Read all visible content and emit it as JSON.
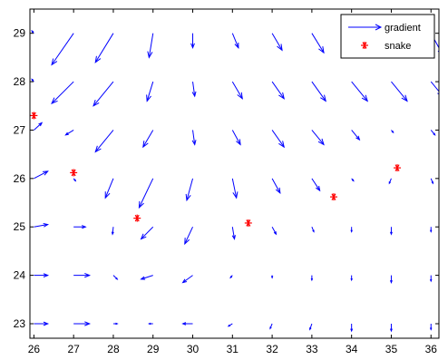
{
  "chart_data": {
    "type": "quiver",
    "xlim": [
      25.9,
      36.2
    ],
    "ylim": [
      22.7,
      29.5
    ],
    "xticks": [
      26,
      27,
      28,
      29,
      30,
      31,
      32,
      33,
      34,
      35,
      36
    ],
    "yticks": [
      23,
      24,
      25,
      26,
      27,
      28,
      29
    ],
    "grid": false,
    "legend_position": "top-right",
    "colors": {
      "gradient": "#0000ff",
      "snake": "#ff0000",
      "axes": "#000000"
    },
    "series": [
      {
        "name": "gradient",
        "kind": "quiver",
        "x_positions": [
          26,
          27,
          28,
          29,
          30,
          31,
          32,
          33,
          34,
          35,
          36
        ],
        "rows": [
          {
            "y": 29.5,
            "u": [
              0,
              0.08,
              0,
              0,
              0,
              0,
              0,
              0,
              0,
              0,
              0
            ],
            "v": [
              0,
              0.03,
              0,
              0,
              0,
              0,
              0,
              0,
              0,
              0,
              0
            ]
          },
          {
            "y": 29,
            "u": [
              -0.05,
              -0.55,
              -0.45,
              -0.1,
              0,
              0.15,
              0.25,
              0.3,
              0.35,
              0.4,
              0.3
            ],
            "v": [
              0.05,
              -0.65,
              -0.6,
              -0.5,
              -0.3,
              -0.3,
              -0.35,
              -0.4,
              -0.45,
              -0.45,
              -0.45
            ]
          },
          {
            "y": 28,
            "u": [
              -0.05,
              -0.55,
              -0.5,
              -0.15,
              0.05,
              0.25,
              0.3,
              0.35,
              0.4,
              0.4,
              0.3
            ],
            "v": [
              0.05,
              -0.45,
              -0.5,
              -0.4,
              -0.3,
              -0.35,
              -0.35,
              -0.4,
              -0.4,
              -0.4,
              -0.3
            ]
          },
          {
            "y": 27,
            "u": [
              0.2,
              -0.2,
              -0.45,
              -0.25,
              0.05,
              0.2,
              0.3,
              0.3,
              0.2,
              0.05,
              0.1
            ],
            "v": [
              0.15,
              -0.1,
              -0.45,
              -0.35,
              -0.3,
              -0.3,
              -0.35,
              -0.3,
              -0.2,
              -0.05,
              -0.1
            ]
          },
          {
            "y": 26,
            "u": [
              0.35,
              0.05,
              -0.2,
              -0.35,
              -0.15,
              0.1,
              0.2,
              0.2,
              0.05,
              -0.05,
              0.05
            ],
            "v": [
              0.15,
              -0.05,
              -0.4,
              -0.6,
              -0.45,
              -0.4,
              -0.3,
              -0.25,
              -0.05,
              -0.1,
              -0.1
            ]
          },
          {
            "y": 25,
            "u": [
              0.35,
              0.3,
              -0.02,
              -0.3,
              -0.2,
              0.05,
              0.1,
              0.05,
              0,
              0,
              0
            ],
            "v": [
              0.05,
              0,
              -0.15,
              -0.25,
              -0.35,
              -0.25,
              -0.15,
              -0.1,
              -0.1,
              -0.15,
              -0.1
            ]
          },
          {
            "y": 24,
            "u": [
              0.35,
              0.4,
              0.1,
              -0.3,
              -0.25,
              -0.05,
              0,
              0,
              0,
              0,
              0
            ],
            "v": [
              0,
              0,
              -0.08,
              -0.08,
              -0.15,
              -0.05,
              -0.05,
              -0.1,
              -0.1,
              -0.15,
              -0.12
            ]
          },
          {
            "y": 23,
            "u": [
              0.35,
              0.4,
              0.1,
              -0.1,
              -0.25,
              -0.1,
              -0.05,
              -0.05,
              0,
              0,
              0
            ],
            "v": [
              0,
              0,
              0,
              0,
              0,
              -0.05,
              -0.1,
              -0.12,
              -0.15,
              -0.15,
              -0.12
            ]
          }
        ]
      },
      {
        "name": "snake",
        "kind": "points",
        "marker": "*",
        "x": [
          26.0,
          27.0,
          28.6,
          31.4,
          33.55,
          35.15
        ],
        "y": [
          27.3,
          26.12,
          25.18,
          25.08,
          25.62,
          26.22
        ]
      }
    ]
  }
}
